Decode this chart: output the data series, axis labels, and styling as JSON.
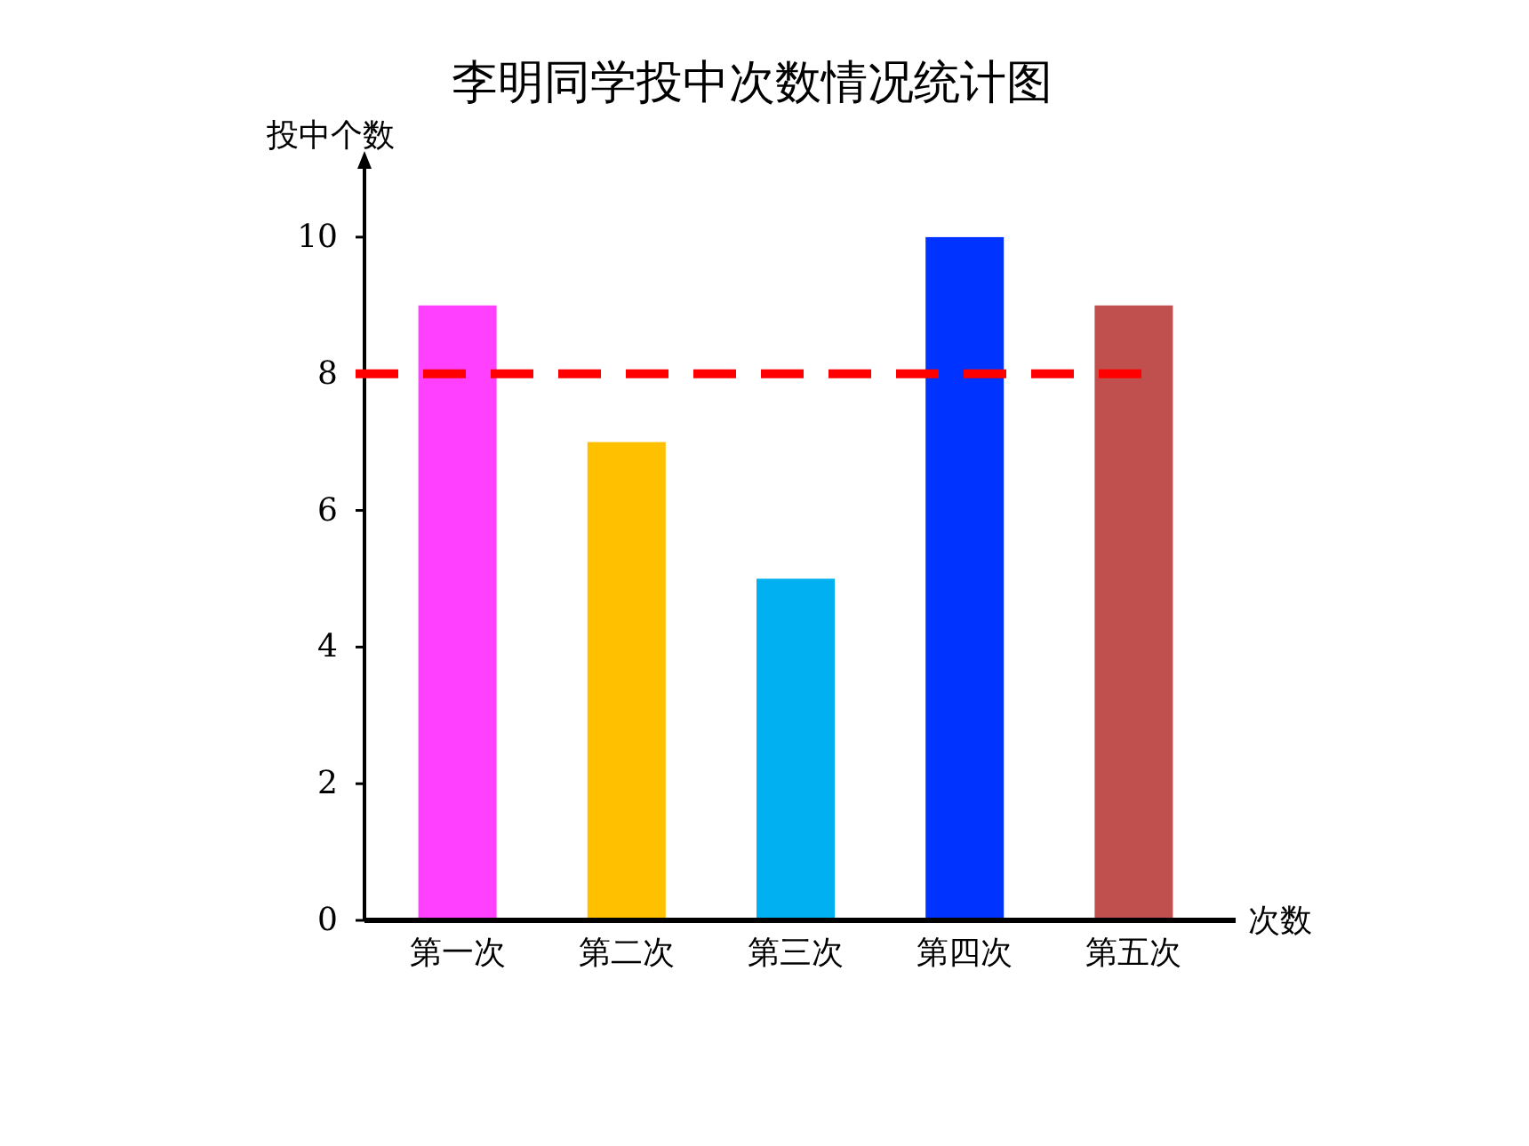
{
  "chart_data": {
    "type": "bar",
    "title": "李明同学投中次数情况统计图",
    "xlabel": "次数",
    "ylabel": "投中个数",
    "categories": [
      "第一次",
      "第二次",
      "第三次",
      "第四次",
      "第五次"
    ],
    "values": [
      9,
      7,
      5,
      10,
      9
    ],
    "colors": [
      "#ff40ff",
      "#ffc000",
      "#00b0f0",
      "#0033ff",
      "#c0504d"
    ],
    "ylim": [
      0,
      11
    ],
    "yticks": [
      0,
      2,
      4,
      6,
      8,
      10
    ],
    "grid": false,
    "legend": false,
    "ref_lines": [
      {
        "axis": "y",
        "value": 8,
        "color": "#ff0000",
        "line_style": "dashed"
      }
    ]
  }
}
